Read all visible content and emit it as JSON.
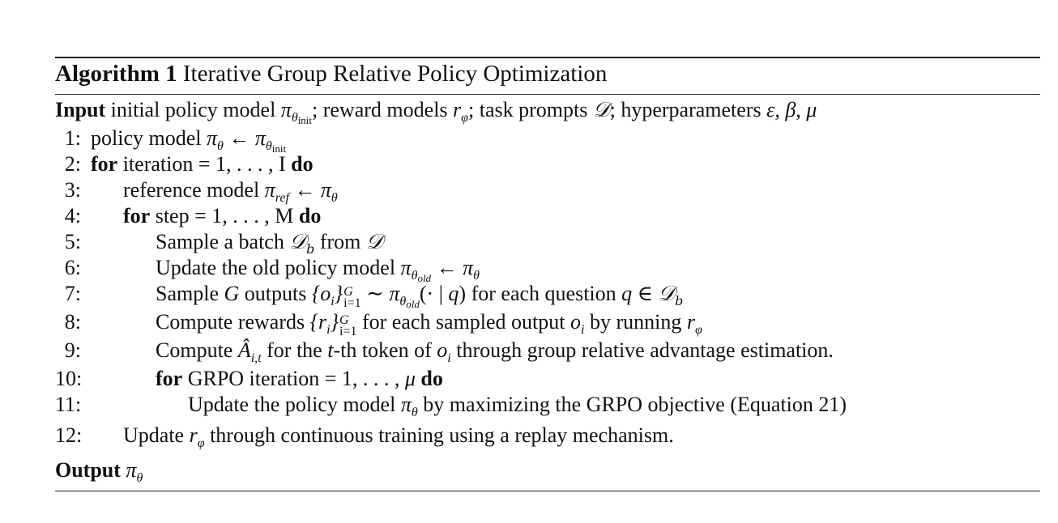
{
  "algorithm": {
    "label": "Algorithm 1",
    "title": "Iterative Group Relative Policy Optimization"
  },
  "input": {
    "label": "Input",
    "text_1": "initial policy model",
    "text_2": "; reward models",
    "text_3": "; task prompts",
    "text_4": "; hyperparameters",
    "hyperparams": "ε, β, μ"
  },
  "steps": [
    {
      "num": "1:",
      "text_a": "policy model"
    },
    {
      "num": "2:",
      "kw_for": "for",
      "text": "iteration = 1, . . . , I",
      "kw_do": "do"
    },
    {
      "num": "3:",
      "text_a": "reference model"
    },
    {
      "num": "4:",
      "kw_for": "for",
      "text": "step = 1, . . . , M",
      "kw_do": "do"
    },
    {
      "num": "5:",
      "text_a": "Sample a batch",
      "text_b": "from"
    },
    {
      "num": "6:",
      "text_a": "Update the old policy model"
    },
    {
      "num": "7:",
      "text_a": "Sample",
      "text_b": "outputs",
      "text_c": "for each question"
    },
    {
      "num": "8:",
      "text_a": "Compute rewards",
      "text_b": "for each sampled output",
      "text_c": "by running"
    },
    {
      "num": "9:",
      "text_a": "Compute",
      "text_b": "for the",
      "text_c": "-th token of",
      "text_d": "through group relative advantage estimation."
    },
    {
      "num": "10:",
      "kw_for": "for",
      "text": "GRPO iteration = 1, . . . ,",
      "kw_do": "do"
    },
    {
      "num": "11:",
      "text_a": "Update the policy model",
      "text_b": "by maximizing the GRPO objective (Equation 21)"
    },
    {
      "num": "12:",
      "text_a": "Update",
      "text_b": "through continuous training using a replay mechanism."
    }
  ],
  "output": {
    "label": "Output"
  }
}
